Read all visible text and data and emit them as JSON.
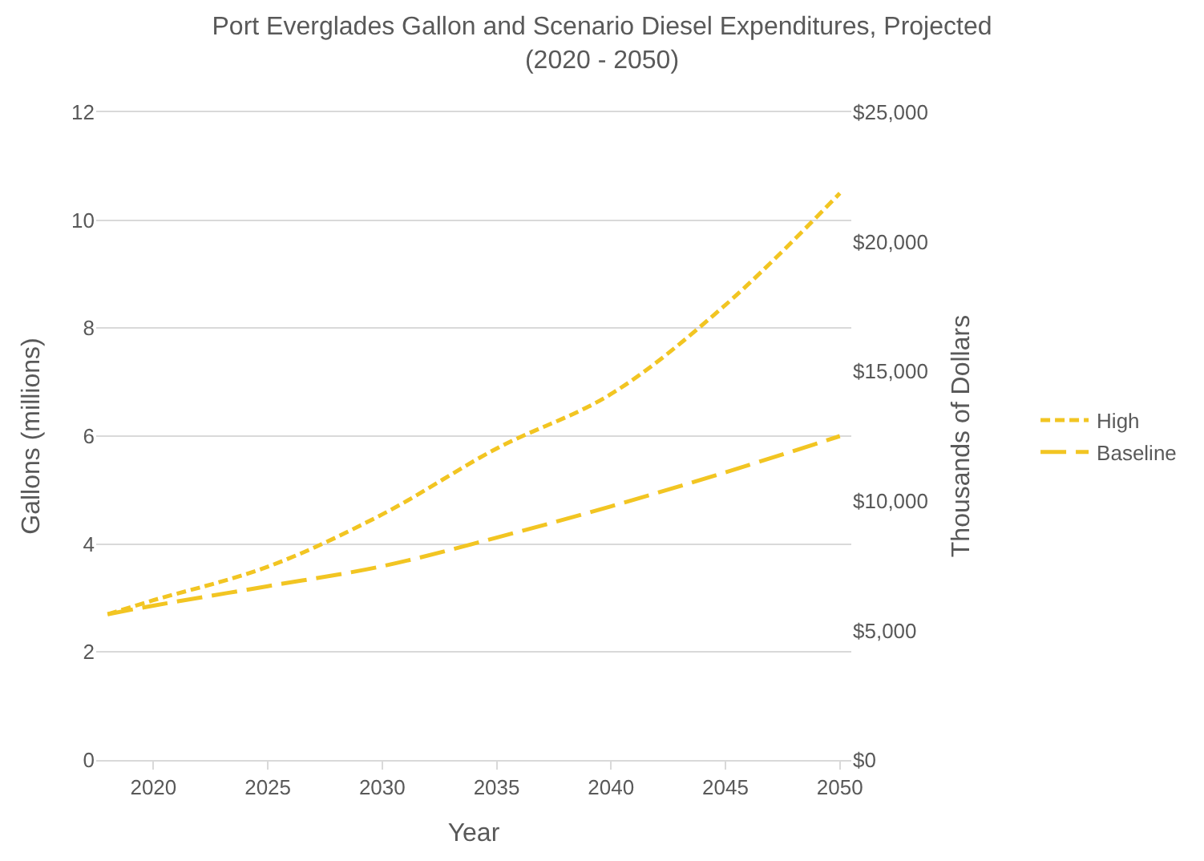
{
  "chart_data": {
    "type": "line",
    "title": "Port Everglades Gallon and Scenario Diesel Expenditures, Projected\n(2020 - 2050)",
    "xlabel": "Year",
    "ylabel": "Gallons (millions)",
    "y2label": "Thousands of Dollars",
    "x": [
      2018,
      2020,
      2025,
      2030,
      2035,
      2040,
      2045,
      2050
    ],
    "series": [
      {
        "name": "High",
        "color": "#f2c522",
        "line_style": "dotted",
        "values": [
          2.7,
          2.96,
          3.58,
          4.55,
          5.77,
          6.78,
          8.43,
          10.5
        ]
      },
      {
        "name": "Baseline",
        "color": "#f2c522",
        "line_style": "dashed",
        "values": [
          2.7,
          2.86,
          3.22,
          3.59,
          4.12,
          4.7,
          5.33,
          6.0
        ]
      }
    ],
    "xlim": [
      2017.5,
      2050.5
    ],
    "xticks": [
      2020,
      2025,
      2030,
      2035,
      2040,
      2045,
      2050
    ],
    "ylim": [
      0,
      12
    ],
    "yticks": [
      0,
      2,
      4,
      6,
      8,
      10,
      12
    ],
    "y2lim": [
      0,
      25000
    ],
    "y2ticks": [
      {
        "value": 0,
        "label": "$0"
      },
      {
        "value": 5000,
        "label": "$5,000"
      },
      {
        "value": 10000,
        "label": "$10,000"
      },
      {
        "value": 15000,
        "label": "$15,000"
      },
      {
        "value": 20000,
        "label": "$20,000"
      },
      {
        "value": 25000,
        "label": "$25,000"
      }
    ],
    "grid": "y",
    "legend": "right"
  }
}
